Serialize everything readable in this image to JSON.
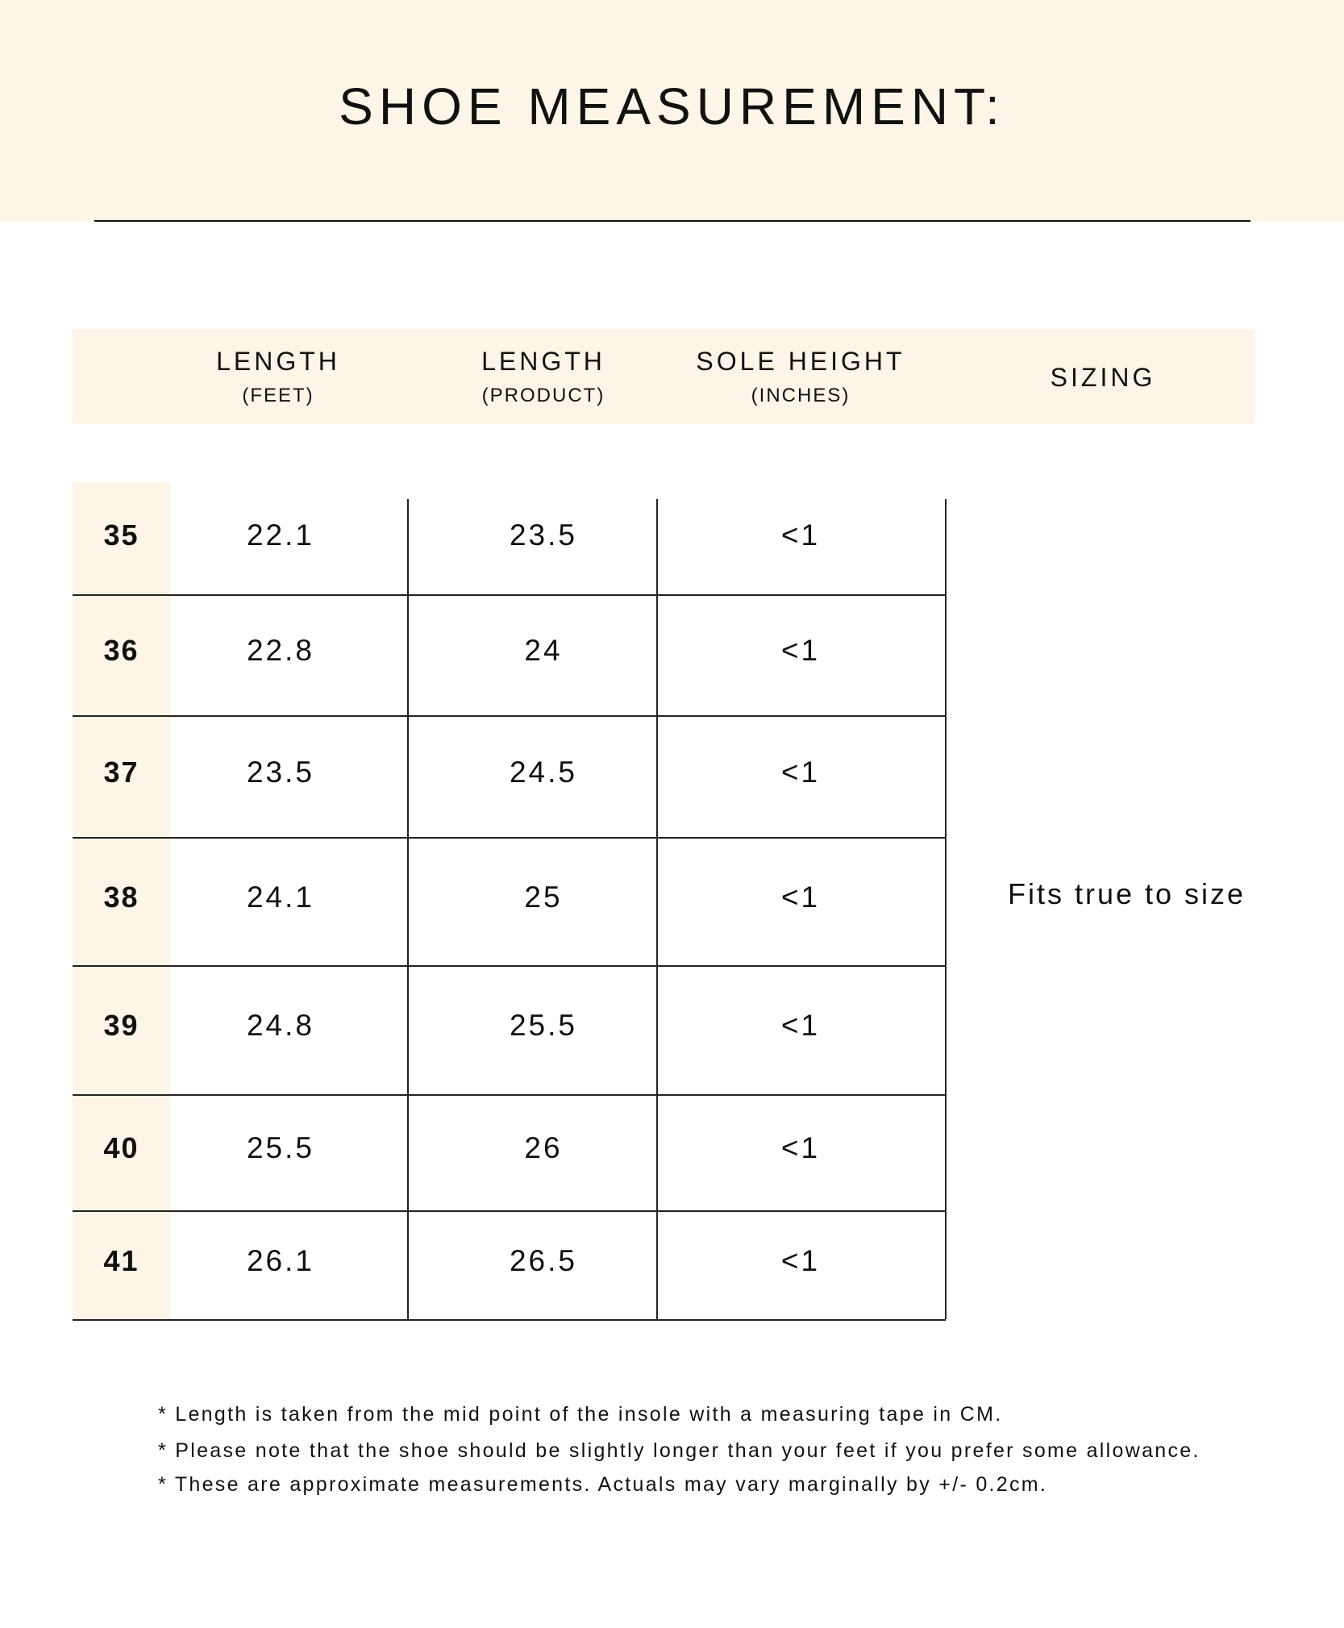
{
  "title": "SHOE MEASUREMENT:",
  "headers": [
    {
      "main": "LENGTH",
      "sub": "(FEET)"
    },
    {
      "main": "LENGTH",
      "sub": "(PRODUCT)"
    },
    {
      "main": "SOLE HEIGHT",
      "sub": "(INCHES)"
    },
    {
      "main": "SIZING",
      "sub": ""
    }
  ],
  "rows": [
    {
      "size": "35",
      "feet": "22.1",
      "product": "23.5",
      "sole": "<1"
    },
    {
      "size": "36",
      "feet": "22.8",
      "product": "24",
      "sole": "<1"
    },
    {
      "size": "37",
      "feet": "23.5",
      "product": "24.5",
      "sole": "<1"
    },
    {
      "size": "38",
      "feet": "24.1",
      "product": "25",
      "sole": "<1"
    },
    {
      "size": "39",
      "feet": "24.8",
      "product": "25.5",
      "sole": "<1"
    },
    {
      "size": "40",
      "feet": "25.5",
      "product": "26",
      "sole": "<1"
    },
    {
      "size": "41",
      "feet": "26.1",
      "product": "26.5",
      "sole": "<1"
    }
  ],
  "sizing": "Fits true to size",
  "notes": [
    "* Length is taken from the mid point of the insole with a measuring tape in CM.",
    "* Please note that the shoe should be slightly longer than your feet if you prefer some allowance.",
    "* These are approximate measurements. Actuals may vary marginally by +/- 0.2cm."
  ],
  "colors": {
    "band": "#fdf5e7",
    "text": "#111111"
  }
}
